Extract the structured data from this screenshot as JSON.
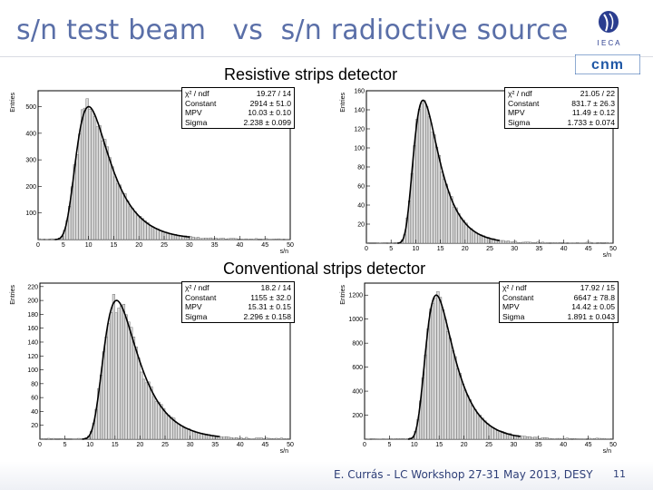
{
  "slide": {
    "title": "s/n test beam   vs  s/n radioctive source",
    "section_top": "Resistive strips detector",
    "section_bottom": "Conventional strips detector",
    "footer": "E. Currás -  LC Workshop 27-31 May 2013, DESY",
    "page_number": "11",
    "accent_color": "#5a6fa8",
    "logos": [
      "ieca-logo",
      "cnm-logo"
    ]
  },
  "chart_data": [
    {
      "type": "bar",
      "id": "resistive-test-beam",
      "xlabel": "s/n",
      "ylabel": "Entries",
      "xlim": [
        0,
        50
      ],
      "ylim": [
        0,
        560
      ],
      "xticks": [
        0,
        5,
        10,
        15,
        20,
        25,
        30,
        35,
        40,
        45,
        50
      ],
      "yticks": [
        100,
        200,
        300,
        400,
        500
      ],
      "bin_width": 0.5,
      "fit": {
        "mpv": 10.03,
        "sigma": 2.238,
        "constant": 2914
      },
      "stats": [
        {
          "label": "χ² / ndf",
          "value": "19.27 / 14"
        },
        {
          "label": "Constant",
          "value": "2914 ± 51.0"
        },
        {
          "label": "MPV",
          "value": "10.03 ± 0.10"
        },
        {
          "label": "Sigma",
          "value": "2.238 ± 0.099"
        }
      ],
      "hist_peak": 500,
      "noise": 0.08
    },
    {
      "type": "bar",
      "id": "resistive-source",
      "xlabel": "s/n",
      "ylabel": "Entries",
      "xlim": [
        0,
        50
      ],
      "ylim": [
        0,
        160
      ],
      "xticks": [
        0,
        5,
        10,
        15,
        20,
        25,
        30,
        35,
        40,
        45,
        50
      ],
      "yticks": [
        20,
        40,
        60,
        80,
        100,
        120,
        140,
        160
      ],
      "bin_width": 0.5,
      "fit": {
        "mpv": 11.49,
        "sigma": 1.733,
        "constant": 831.7
      },
      "stats": [
        {
          "label": "χ² / ndf",
          "value": "21.05 / 22"
        },
        {
          "label": "Constant",
          "value": "831.7 ± 26.3"
        },
        {
          "label": "MPV",
          "value": "11.49 ± 0.12"
        },
        {
          "label": "Sigma",
          "value": "1.733 ± 0.074"
        }
      ],
      "hist_peak": 150,
      "noise": 0.08
    },
    {
      "type": "bar",
      "id": "conventional-test-beam",
      "xlabel": "s/n",
      "ylabel": "Entries",
      "xlim": [
        0,
        50
      ],
      "ylim": [
        0,
        225
      ],
      "xticks": [
        0,
        5,
        10,
        15,
        20,
        25,
        30,
        35,
        40,
        45,
        50
      ],
      "yticks": [
        20,
        40,
        60,
        80,
        100,
        120,
        140,
        160,
        180,
        200,
        220
      ],
      "bin_width": 0.5,
      "fit": {
        "mpv": 15.31,
        "sigma": 2.296,
        "constant": 1155
      },
      "stats": [
        {
          "label": "χ² / ndf",
          "value": "18.2 / 14"
        },
        {
          "label": "Constant",
          "value": "1155 ± 32.0"
        },
        {
          "label": "MPV",
          "value": "15.31 ± 0.15"
        },
        {
          "label": "Sigma",
          "value": "2.296 ± 0.158"
        }
      ],
      "hist_peak": 200,
      "noise": 0.1
    },
    {
      "type": "bar",
      "id": "conventional-source",
      "xlabel": "s/n",
      "ylabel": "Entries",
      "xlim": [
        0,
        50
      ],
      "ylim": [
        0,
        1300
      ],
      "xticks": [
        0,
        5,
        10,
        15,
        20,
        25,
        30,
        35,
        40,
        45,
        50
      ],
      "yticks": [
        200,
        400,
        600,
        800,
        1000,
        1200
      ],
      "bin_width": 0.5,
      "fit": {
        "mpv": 14.42,
        "sigma": 1.891,
        "constant": 6647
      },
      "stats": [
        {
          "label": "χ² / ndf",
          "value": "17.92 / 15"
        },
        {
          "label": "Constant",
          "value": "6647 ± 78.8"
        },
        {
          "label": "MPV",
          "value": "14.42 ± 0.05"
        },
        {
          "label": "Sigma",
          "value": "1.891 ± 0.043"
        }
      ],
      "hist_peak": 1200,
      "noise": 0.03
    }
  ]
}
